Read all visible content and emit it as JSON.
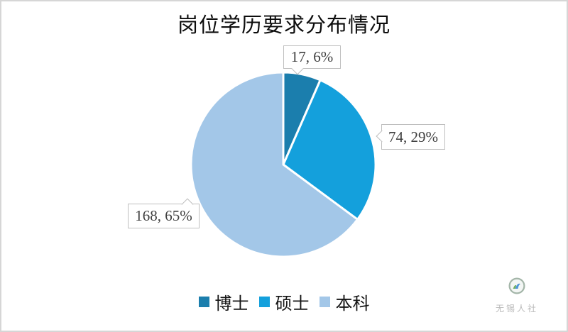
{
  "chart_data": {
    "type": "pie",
    "title": "岗位学历要求分布情况",
    "categories": [
      "博士",
      "硕士",
      "本科"
    ],
    "values": [
      17,
      74,
      168
    ],
    "percent_labels": [
      "6%",
      "29%",
      "65%"
    ],
    "data_labels": [
      "17, 6%",
      "74, 29%",
      "168, 65%"
    ],
    "colors": [
      "#1b7ead",
      "#14a0dc",
      "#a3c7e8"
    ],
    "start_angle_deg": 0,
    "direction": "clockwise",
    "legend_position": "bottom",
    "slice_border_color": "#ffffff"
  },
  "legend": {
    "items": [
      {
        "label": "博士",
        "color": "#1b7ead"
      },
      {
        "label": "硕士",
        "color": "#14a0dc"
      },
      {
        "label": "本科",
        "color": "#a3c7e8"
      }
    ]
  },
  "watermark": {
    "text": "无锡人社"
  }
}
